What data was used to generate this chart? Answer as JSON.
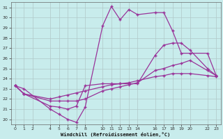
{
  "xlabel": "Windchill (Refroidissement éolien,°C)",
  "bg_color": "#c8ecec",
  "line_color": "#993399",
  "grid_color": "#b0c8c8",
  "ylim": [
    19.5,
    31.5
  ],
  "xlim": [
    -0.5,
    23.5
  ],
  "yticks": [
    20,
    21,
    22,
    23,
    24,
    25,
    26,
    27,
    28,
    29,
    30,
    31
  ],
  "xticks": [
    0,
    1,
    2,
    4,
    5,
    6,
    7,
    8,
    10,
    11,
    12,
    13,
    14,
    16,
    17,
    18,
    19,
    20,
    22,
    23
  ],
  "hours_l1": [
    0,
    1,
    4,
    5,
    6,
    7,
    8,
    10,
    11,
    12,
    13,
    14,
    16,
    17,
    18,
    19,
    20,
    22,
    23
  ],
  "line1": [
    23.3,
    23.0,
    21.0,
    20.5,
    20.0,
    19.7,
    21.2,
    29.2,
    31.1,
    29.8,
    30.8,
    30.3,
    30.5,
    30.5,
    28.7,
    26.5,
    26.5,
    26.5,
    24.3
  ],
  "hours_l2": [
    0,
    1,
    4,
    5,
    6,
    7,
    8,
    10,
    11,
    12,
    13,
    14,
    16,
    17,
    18,
    19,
    20,
    22,
    23
  ],
  "line2": [
    23.3,
    22.5,
    21.3,
    21.2,
    21.0,
    21.3,
    23.3,
    23.5,
    23.5,
    23.5,
    23.5,
    23.5,
    26.3,
    27.3,
    27.5,
    27.5,
    26.8,
    25.0,
    24.3
  ],
  "hours_l3": [
    0,
    1,
    4,
    5,
    6,
    7,
    8,
    10,
    11,
    12,
    13,
    14,
    16,
    17,
    18,
    19,
    20,
    22,
    23
  ],
  "line3": [
    23.3,
    22.5,
    21.8,
    21.8,
    21.8,
    21.8,
    22.0,
    22.8,
    23.0,
    23.2,
    23.4,
    23.6,
    24.8,
    25.0,
    25.3,
    25.5,
    25.8,
    24.8,
    24.3
  ],
  "hours_l4": [
    0,
    1,
    4,
    5,
    6,
    7,
    8,
    10,
    11,
    12,
    13,
    14,
    16,
    17,
    18,
    19,
    20,
    22,
    23
  ],
  "line4": [
    23.3,
    22.5,
    22.0,
    22.2,
    22.4,
    22.6,
    22.8,
    23.2,
    23.4,
    23.5,
    23.6,
    23.8,
    24.2,
    24.3,
    24.5,
    24.5,
    24.5,
    24.3,
    24.2
  ]
}
